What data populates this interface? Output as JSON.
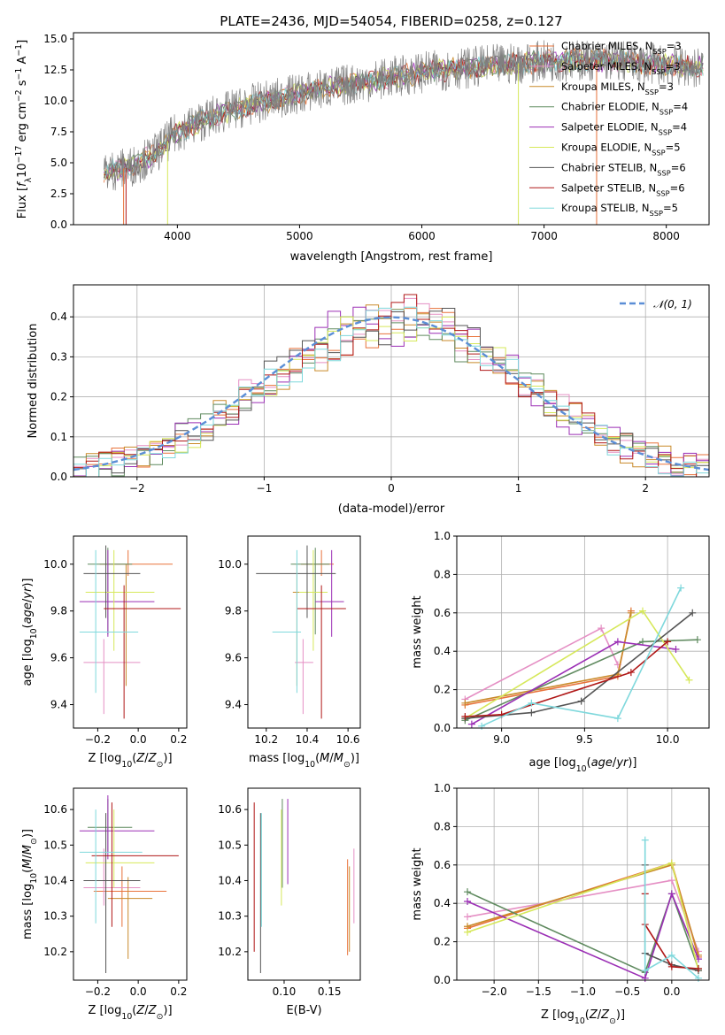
{
  "figure": {
    "title": "PLATE=2436, MJD=54054, FIBERID=0258, z=0.127"
  },
  "colors": {
    "data": "#808080",
    "models": [
      "#e8723a",
      "#e58fc4",
      "#c98a2a",
      "#5f8a5f",
      "#9b2fb5",
      "#d6e85a",
      "#555555",
      "#b01818",
      "#7fd8dc"
    ],
    "normal": "#5b8ed6",
    "grid": "#b0b0b0"
  },
  "chart_data": [
    {
      "id": "spectrum",
      "type": "line",
      "xlabel": "wavelength [Angstrom, rest frame]",
      "ylabel": "Flux [f_λ 10^-17 erg cm^-2 s^-1 A^-1]",
      "xlim": [
        3150,
        8350
      ],
      "ylim": [
        0,
        15.5
      ],
      "xticks": [
        4000,
        5000,
        6000,
        7000,
        8000
      ],
      "yticks": [
        "0.0",
        "2.5",
        "5.0",
        "7.5",
        "10.0",
        "12.5",
        "15.0"
      ],
      "grid": false,
      "legend_position": "upper right",
      "series": [
        {
          "name": "Chabrier MILES, N_SSP=3",
          "type": "model"
        },
        {
          "name": "Salpeter MILES, N_SSP=3",
          "type": "model"
        },
        {
          "name": "Kroupa MILES, N_SSP=3",
          "type": "model"
        },
        {
          "name": "Chabrier ELODIE, N_SSP=4",
          "type": "model"
        },
        {
          "name": "Salpeter ELODIE, N_SSP=4",
          "type": "model"
        },
        {
          "name": "Kroupa ELODIE, N_SSP=5",
          "type": "model"
        },
        {
          "name": "Chabrier STELIB, N_SSP=6",
          "type": "model"
        },
        {
          "name": "Salpeter STELIB, N_SSP=6",
          "type": "model"
        },
        {
          "name": "Kroupa STELIB, N_SSP=5",
          "type": "model"
        }
      ],
      "continuum": {
        "x": [
          3400,
          3600,
          3800,
          4000,
          4300,
          4600,
          5000,
          5500,
          6000,
          6500,
          7000,
          7500,
          8000,
          8200
        ],
        "y": [
          4.3,
          4.6,
          5.6,
          7.5,
          8.8,
          9.7,
          10.6,
          11.5,
          12.3,
          12.8,
          13.2,
          13.3,
          12.9,
          12.7
        ]
      },
      "legend_labels": [
        "Chabrier MILES, N",
        "Salpeter MILES, N",
        "Kroupa MILES, N",
        "Chabrier ELODIE, N",
        "Salpeter ELODIE, N",
        "Kroupa ELODIE, N",
        "Chabrier STELIB, N",
        "Salpeter STELIB, N",
        "Kroupa STELIB, N"
      ],
      "legend_sub": "SSP",
      "legend_vals": [
        "=3",
        "=3",
        "=3",
        "=4",
        "=4",
        "=5",
        "=6",
        "=6",
        "=5"
      ]
    },
    {
      "id": "residuals",
      "type": "histogram",
      "xlabel": "(data-model)/error",
      "ylabel": "Normed distribution",
      "xlim": [
        -2.5,
        2.5
      ],
      "ylim": [
        0,
        0.48
      ],
      "xticks": [
        "−2",
        "−1",
        "0",
        "1",
        "2"
      ],
      "xtick_vals": [
        -2,
        -1,
        0,
        1,
        2
      ],
      "yticks": [
        "0.0",
        "0.1",
        "0.2",
        "0.3",
        "0.4"
      ],
      "ytick_vals": [
        0,
        0.1,
        0.2,
        0.3,
        0.4
      ],
      "grid": true,
      "legend": "N(0,1)",
      "bin_width": 0.1
    },
    {
      "id": "age-vs-z",
      "type": "errorbar",
      "xlabel": "Z [log10(Z/Z⊙)]",
      "ylabel": "age [log10(age/yr)]",
      "xlim": [
        -0.32,
        0.24
      ],
      "ylim": [
        9.3,
        10.12
      ],
      "xticks": [
        "−0.2",
        "0.0",
        "0.2"
      ],
      "xtick_vals": [
        -0.2,
        0,
        0.2
      ],
      "yticks": [
        "9.4",
        "9.6",
        "9.8",
        "10.0"
      ],
      "ytick_vals": [
        9.4,
        9.6,
        9.8,
        10.0
      ],
      "points": [
        {
          "x": -0.05,
          "xerr": [
            0.14,
            0.22
          ],
          "y": 10.0,
          "yerr": [
            0.05,
            0.06
          ]
        },
        {
          "x": -0.17,
          "xerr": [
            0.1,
            0.18
          ],
          "y": 9.58,
          "yerr": [
            0.22,
            0.1
          ]
        },
        {
          "x": -0.06,
          "xerr": [
            0.1,
            0.12
          ],
          "y": 9.88,
          "yerr": [
            0.4,
            0.12
          ]
        },
        {
          "x": -0.15,
          "xerr": [
            0.1,
            0.12
          ],
          "y": 10.0,
          "yerr": [
            0.3,
            0.07
          ]
        },
        {
          "x": -0.15,
          "xerr": [
            0.14,
            0.23
          ],
          "y": 9.84,
          "yerr": [
            0.15,
            0.22
          ]
        },
        {
          "x": -0.12,
          "xerr": [
            0.14,
            0.2
          ],
          "y": 9.88,
          "yerr": [
            0.25,
            0.18
          ]
        },
        {
          "x": -0.16,
          "xerr": [
            0.11,
            0.17
          ],
          "y": 9.96,
          "yerr": [
            0.19,
            0.12
          ]
        },
        {
          "x": -0.07,
          "xerr": [
            0.1,
            0.28
          ],
          "y": 9.81,
          "yerr": [
            0.47,
            0.1
          ]
        },
        {
          "x": -0.21,
          "xerr": [
            0.08,
            0.21
          ],
          "y": 9.71,
          "yerr": [
            0.26,
            0.35
          ]
        }
      ]
    },
    {
      "id": "age-vs-mass",
      "type": "errorbar",
      "xlabel": "mass [log10(M/M⊙)]",
      "ylabel": "",
      "xlim": [
        10.11,
        10.66
      ],
      "ylim": [
        9.3,
        10.12
      ],
      "xticks": [
        "10.2",
        "10.4",
        "10.6"
      ],
      "xtick_vals": [
        10.2,
        10.4,
        10.6
      ],
      "yticks": [
        "9.4",
        "9.6",
        "9.8",
        "10.0"
      ],
      "ytick_vals": [
        9.4,
        9.6,
        9.8,
        10.0
      ],
      "points": [
        {
          "x": 10.47,
          "xerr": [
            0.1,
            0.06
          ],
          "y": 10.0,
          "yerr": [
            0.05,
            0.06
          ]
        },
        {
          "x": 10.38,
          "xerr": [
            0.04,
            0.05
          ],
          "y": 9.58,
          "yerr": [
            0.22,
            0.1
          ]
        },
        {
          "x": 10.35,
          "xerr": [
            0.02,
            0.03
          ],
          "y": 9.88,
          "yerr": [
            0.4,
            0.12
          ]
        },
        {
          "x": 10.44,
          "xerr": [
            0.12,
            0.07
          ],
          "y": 10.0,
          "yerr": [
            0.3,
            0.07
          ]
        },
        {
          "x": 10.52,
          "xerr": [
            0.08,
            0.06
          ],
          "y": 9.84,
          "yerr": [
            0.15,
            0.22
          ]
        },
        {
          "x": 10.43,
          "xerr": [
            0.07,
            0.07
          ],
          "y": 9.88,
          "yerr": [
            0.25,
            0.18
          ]
        },
        {
          "x": 10.4,
          "xerr": [
            0.25,
            0.14
          ],
          "y": 9.96,
          "yerr": [
            0.19,
            0.12
          ]
        },
        {
          "x": 10.47,
          "xerr": [
            0.12,
            0.12
          ],
          "y": 9.81,
          "yerr": [
            0.47,
            0.1
          ]
        },
        {
          "x": 10.35,
          "xerr": [
            0.12,
            0.02
          ],
          "y": 9.71,
          "yerr": [
            0.26,
            0.35
          ]
        }
      ]
    },
    {
      "id": "weight-vs-age",
      "type": "line",
      "xlabel": "age [log10(age/yr)]",
      "ylabel": "mass weight",
      "xlim": [
        8.73,
        10.25
      ],
      "ylim": [
        0,
        1.0
      ],
      "xticks": [
        "9.0",
        "9.5",
        "10.0"
      ],
      "xtick_vals": [
        9.0,
        9.5,
        10.0
      ],
      "yticks": [
        "0.0",
        "0.2",
        "0.4",
        "0.6",
        "0.8",
        "1.0"
      ],
      "ytick_vals": [
        0,
        0.2,
        0.4,
        0.6,
        0.8,
        1.0
      ],
      "grid": true,
      "series": [
        {
          "x": [
            8.78,
            9.7,
            9.78
          ],
          "y": [
            0.12,
            0.27,
            0.61
          ]
        },
        {
          "x": [
            8.78,
            9.6,
            9.7
          ],
          "y": [
            0.15,
            0.52,
            0.33
          ]
        },
        {
          "x": [
            8.78,
            9.7,
            9.78
          ],
          "y": [
            0.13,
            0.28,
            0.6
          ]
        },
        {
          "x": [
            8.78,
            9.85,
            10.18
          ],
          "y": [
            0.04,
            0.45,
            0.46
          ]
        },
        {
          "x": [
            8.82,
            9.7,
            10.05
          ],
          "y": [
            0.02,
            0.45,
            0.41
          ]
        },
        {
          "x": [
            8.78,
            9.85,
            10.13
          ],
          "y": [
            0.05,
            0.61,
            0.25
          ]
        },
        {
          "x": [
            8.78,
            9.18,
            9.48,
            10.15
          ],
          "y": [
            0.05,
            0.08,
            0.14,
            0.6
          ]
        },
        {
          "x": [
            8.78,
            9.0,
            9.78,
            10.0
          ],
          "y": [
            0.06,
            0.07,
            0.29,
            0.45
          ]
        },
        {
          "x": [
            8.88,
            9.18,
            9.7,
            10.08
          ],
          "y": [
            0.01,
            0.13,
            0.05,
            0.73
          ]
        }
      ]
    },
    {
      "id": "mass-vs-z",
      "type": "errorbar",
      "xlabel": "Z [log10(Z/Z⊙)]",
      "ylabel": "mass [log10(M/M⊙)]",
      "xlim": [
        -0.32,
        0.24
      ],
      "ylim": [
        10.12,
        10.66
      ],
      "xticks": [
        "−0.2",
        "0.0",
        "0.2"
      ],
      "xtick_vals": [
        -0.2,
        0,
        0.2
      ],
      "yticks": [
        "10.2",
        "10.3",
        "10.4",
        "10.5",
        "10.6"
      ],
      "ytick_vals": [
        10.2,
        10.3,
        10.4,
        10.5,
        10.6
      ],
      "points": [
        {
          "x": -0.08,
          "xerr": [
            0.14,
            0.22
          ],
          "y": 10.37,
          "yerr": [
            0.1,
            0.07
          ]
        },
        {
          "x": -0.17,
          "xerr": [
            0.1,
            0.18
          ],
          "y": 10.38,
          "yerr": [
            0.05,
            0.11
          ]
        },
        {
          "x": -0.05,
          "xerr": [
            0.1,
            0.12
          ],
          "y": 10.35,
          "yerr": [
            0.17,
            0.06
          ]
        },
        {
          "x": -0.15,
          "xerr": [
            0.1,
            0.12
          ],
          "y": 10.55,
          "yerr": [
            0.07,
            0.08
          ]
        },
        {
          "x": -0.15,
          "xerr": [
            0.14,
            0.23
          ],
          "y": 10.54,
          "yerr": [
            0.08,
            0.1
          ]
        },
        {
          "x": -0.12,
          "xerr": [
            0.14,
            0.2
          ],
          "y": 10.45,
          "yerr": [
            0.07,
            0.15
          ]
        },
        {
          "x": -0.16,
          "xerr": [
            0.11,
            0.17
          ],
          "y": 10.4,
          "yerr": [
            0.26,
            0.19
          ]
        },
        {
          "x": -0.13,
          "xerr": [
            0.1,
            0.33
          ],
          "y": 10.47,
          "yerr": [
            0.2,
            0.15
          ]
        },
        {
          "x": -0.21,
          "xerr": [
            0.08,
            0.23
          ],
          "y": 10.48,
          "yerr": [
            0.2,
            0.12
          ]
        }
      ]
    },
    {
      "id": "mass-vs-ebv",
      "type": "errorbar",
      "xlabel": "E(B-V)",
      "ylabel": "",
      "xlim": [
        0.06,
        0.184
      ],
      "ylim": [
        10.12,
        10.66
      ],
      "xticks": [
        "0.10",
        "0.15"
      ],
      "xtick_vals": [
        0.1,
        0.15
      ],
      "yticks": [
        "10.2",
        "10.3",
        "10.4",
        "10.5",
        "10.6"
      ],
      "ytick_vals": [
        10.2,
        10.3,
        10.4,
        10.5,
        10.6
      ],
      "points": [
        {
          "x": 0.17,
          "y": 10.33,
          "yerr": [
            0.14,
            0.13
          ]
        },
        {
          "x": 0.177,
          "y": 10.38,
          "yerr": [
            0.1,
            0.11
          ]
        },
        {
          "x": 0.172,
          "y": 10.3,
          "yerr": [
            0.1,
            0.14
          ]
        },
        {
          "x": 0.098,
          "y": 10.5,
          "yerr": [
            0.12,
            0.13
          ]
        },
        {
          "x": 0.104,
          "y": 10.5,
          "yerr": [
            0.11,
            0.13
          ]
        },
        {
          "x": 0.097,
          "y": 10.47,
          "yerr": [
            0.14,
            0.13
          ]
        },
        {
          "x": 0.074,
          "y": 10.38,
          "yerr": [
            0.24,
            0.21
          ]
        },
        {
          "x": 0.067,
          "y": 10.4,
          "yerr": [
            0.2,
            0.22
          ]
        },
        {
          "x": 0.075,
          "y": 10.46,
          "yerr": [
            0.19,
            0.13
          ]
        }
      ]
    },
    {
      "id": "weight-vs-z",
      "type": "line",
      "xlabel": "Z [log10(Z/Z⊙)]",
      "ylabel": "mass weight",
      "xlim": [
        -2.42,
        0.42
      ],
      "ylim": [
        0,
        1.0
      ],
      "xticks": [
        "−2.0",
        "−1.5",
        "−1.0",
        "−0.5",
        "0.0"
      ],
      "xtick_vals": [
        -2.0,
        -1.5,
        -1.0,
        -0.5,
        0.0
      ],
      "yticks": [
        "0.0",
        "0.2",
        "0.4",
        "0.6",
        "0.8",
        "1.0"
      ],
      "ytick_vals": [
        0,
        0.2,
        0.4,
        0.6,
        0.8,
        1.0
      ],
      "grid": true,
      "series": [
        {
          "x": [
            -2.3,
            0.0,
            0.3
          ],
          "y": [
            0.27,
            0.61,
            0.12
          ]
        },
        {
          "x": [
            -2.3,
            0.0,
            0.3
          ],
          "y": [
            0.33,
            0.52,
            0.15
          ]
        },
        {
          "x": [
            -2.3,
            0.0,
            0.3
          ],
          "y": [
            0.28,
            0.6,
            0.13
          ]
        },
        {
          "x": [
            -2.3,
            -0.3,
            0.0,
            0.3
          ],
          "y": [
            0.46,
            0.04,
            0.45,
            0.06
          ]
        },
        {
          "x": [
            -2.3,
            -0.3,
            0.0,
            0.3
          ],
          "y": [
            0.41,
            0.01,
            0.45,
            0.11
          ]
        },
        {
          "x": [
            -2.3,
            0.0,
            0.3
          ],
          "y": [
            0.25,
            0.61,
            0.05
          ]
        },
        {
          "x": [
            -0.3,
            -0.3,
            0.0,
            0.3
          ],
          "y": [
            0.6,
            0.14,
            0.08,
            0.05
          ]
        },
        {
          "x": [
            -0.3,
            -0.3,
            0.0,
            0.3
          ],
          "y": [
            0.45,
            0.29,
            0.07,
            0.06
          ]
        },
        {
          "x": [
            -0.3,
            -0.3,
            0.0,
            0.3
          ],
          "y": [
            0.73,
            0.05,
            0.13,
            0.01
          ]
        }
      ]
    }
  ]
}
